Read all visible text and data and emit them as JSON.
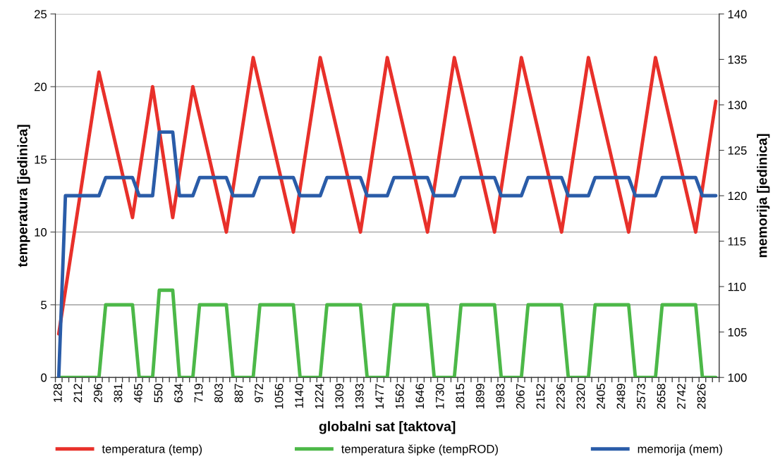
{
  "chart_data": {
    "type": "line",
    "xlabel": "globalni sat [taktova]",
    "ylabel": "temperatura [jedinica]",
    "y2label": "memorija [jedinica]",
    "categories": [
      "128",
      null,
      null,
      "212",
      null,
      null,
      "296",
      null,
      null,
      "381",
      null,
      null,
      "465",
      null,
      null,
      "550",
      null,
      null,
      "634",
      null,
      null,
      "719",
      null,
      null,
      "803",
      null,
      null,
      "887",
      null,
      null,
      "972",
      null,
      null,
      "1056",
      null,
      null,
      "1140",
      null,
      null,
      "1224",
      null,
      null,
      "1309",
      null,
      null,
      "1393",
      null,
      null,
      "1477",
      null,
      null,
      "1562",
      null,
      null,
      "1646",
      null,
      null,
      "1730",
      null,
      null,
      "1815",
      null,
      null,
      "1899",
      null,
      null,
      "1983",
      null,
      null,
      "2067",
      null,
      null,
      "2152",
      null,
      null,
      "2236",
      null,
      null,
      "2320",
      null,
      null,
      "2405",
      null,
      null,
      "2489",
      null,
      null,
      "2573",
      null,
      null,
      "2658",
      null,
      null,
      "2742",
      null,
      null,
      "2826",
      null,
      null
    ],
    "series": [
      {
        "name": "temperatura (temp)",
        "color": "#e8302a",
        "values": [
          3,
          6,
          9,
          12,
          15,
          18,
          21,
          19,
          17,
          15,
          13,
          11,
          14,
          17,
          20,
          17,
          14,
          11,
          14,
          17,
          20,
          18,
          16,
          14,
          12,
          10,
          13,
          16,
          19,
          22,
          20,
          18,
          16,
          14,
          12,
          10,
          13,
          16,
          19,
          22,
          20,
          18,
          16,
          14,
          12,
          10,
          13,
          16,
          19,
          22,
          20,
          18,
          16,
          14,
          12,
          10,
          13,
          16,
          19,
          22,
          20,
          18,
          16,
          14,
          12,
          10,
          13,
          16,
          19,
          22,
          20,
          18,
          16,
          14,
          12,
          10,
          13,
          16,
          19,
          22,
          20,
          18,
          16,
          14,
          12,
          10,
          13,
          16,
          19,
          22,
          20,
          18,
          16,
          14,
          12,
          10,
          13,
          16,
          19
        ]
      },
      {
        "name": "temperatura šipke (tempROD)",
        "color": "#4cb848",
        "values": [
          0,
          0,
          0,
          0,
          0,
          0,
          0,
          5,
          5,
          5,
          5,
          5,
          0,
          0,
          0,
          6,
          6,
          6,
          0,
          0,
          0,
          5,
          5,
          5,
          5,
          5,
          0,
          0,
          0,
          0,
          5,
          5,
          5,
          5,
          5,
          5,
          0,
          0,
          0,
          0,
          5,
          5,
          5,
          5,
          5,
          5,
          0,
          0,
          0,
          0,
          5,
          5,
          5,
          5,
          5,
          5,
          0,
          0,
          0,
          0,
          5,
          5,
          5,
          5,
          5,
          5,
          0,
          0,
          0,
          0,
          5,
          5,
          5,
          5,
          5,
          5,
          0,
          0,
          0,
          0,
          5,
          5,
          5,
          5,
          5,
          5,
          0,
          0,
          0,
          0,
          5,
          5,
          5,
          5,
          5,
          5,
          0,
          0,
          0
        ]
      },
      {
        "name": "memorija (mem)",
        "color": "#2a5ca8",
        "axis": "y2",
        "values": [
          100,
          120,
          120,
          120,
          120,
          120,
          120,
          122,
          122,
          122,
          122,
          122,
          120,
          120,
          120,
          127,
          127,
          127,
          120,
          120,
          120,
          122,
          122,
          122,
          122,
          122,
          120,
          120,
          120,
          120,
          122,
          122,
          122,
          122,
          122,
          122,
          120,
          120,
          120,
          120,
          122,
          122,
          122,
          122,
          122,
          122,
          120,
          120,
          120,
          120,
          122,
          122,
          122,
          122,
          122,
          122,
          120,
          120,
          120,
          120,
          122,
          122,
          122,
          122,
          122,
          122,
          120,
          120,
          120,
          120,
          122,
          122,
          122,
          122,
          122,
          122,
          120,
          120,
          120,
          120,
          122,
          122,
          122,
          122,
          122,
          122,
          120,
          120,
          120,
          120,
          122,
          122,
          122,
          122,
          122,
          122,
          120,
          120,
          120
        ]
      }
    ],
    "ylim": [
      0,
      25
    ],
    "yticks": [
      0,
      5,
      10,
      15,
      20,
      25
    ],
    "y2lim": [
      100,
      140
    ],
    "y2ticks": [
      100,
      105,
      110,
      115,
      120,
      125,
      130,
      135,
      140
    ],
    "grid": "y",
    "legend": "bottom",
    "marker": "none",
    "line_style": "solid"
  }
}
